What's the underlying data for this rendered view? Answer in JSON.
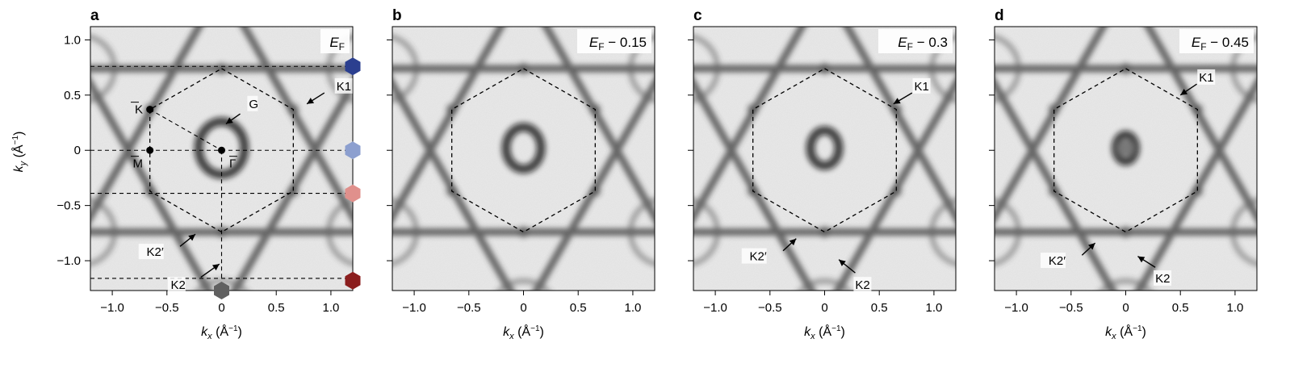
{
  "panels": [
    {
      "letter": "a",
      "energy_prefix": "E",
      "energy_sub": "F",
      "energy_suffix": "",
      "arrows": [
        {
          "text": "K1"
        },
        {
          "text": "G"
        },
        {
          "text": "K2′"
        },
        {
          "text": "K2"
        }
      ],
      "points": [
        {
          "text": "K"
        },
        {
          "text": "M"
        },
        {
          "text": "Γ"
        }
      ],
      "markers": [
        {
          "color": "#2b3f8f"
        },
        {
          "color": "#8c9fcf"
        },
        {
          "color": "#e0908c"
        },
        {
          "color": "#8b1e1e"
        },
        {
          "color": "#606060"
        }
      ]
    },
    {
      "letter": "b",
      "energy_prefix": "E",
      "energy_sub": "F",
      "energy_suffix": " − 0.15",
      "arrows": [],
      "points": [],
      "markers": []
    },
    {
      "letter": "c",
      "energy_prefix": "E",
      "energy_sub": "F",
      "energy_suffix": " − 0.3",
      "arrows": [
        {
          "text": "K1"
        },
        {
          "text": "K2′"
        },
        {
          "text": "K2"
        }
      ],
      "points": [],
      "markers": []
    },
    {
      "letter": "d",
      "energy_prefix": "E",
      "energy_sub": "F",
      "energy_suffix": " − 0.45",
      "arrows": [
        {
          "text": "K1"
        },
        {
          "text": "K2′"
        },
        {
          "text": "K2"
        }
      ],
      "points": [],
      "markers": []
    }
  ],
  "axes": {
    "x_label_main": "k",
    "x_label_sub": "x",
    "x_label_unit": " (Å",
    "x_label_exp": "−1",
    "x_label_close": ")",
    "y_label_main": "k",
    "y_label_sub": "y",
    "y_label_unit": " (Å",
    "y_label_exp": "−1",
    "y_label_close": ")",
    "x_range": [
      -1.2,
      1.2
    ],
    "y_range": [
      -1.27,
      1.12
    ],
    "x_ticks": [
      -1.0,
      -0.5,
      0,
      0.5,
      1.0
    ],
    "x_tick_labels": [
      "−1.0",
      "−0.5",
      "0",
      "0.5",
      "1.0"
    ],
    "y_ticks": [
      1.0,
      0.5,
      0,
      -0.5,
      -1.0
    ],
    "y_tick_labels": [
      "1.0",
      "0.5",
      "0",
      "−0.5",
      "−1.0"
    ]
  }
}
